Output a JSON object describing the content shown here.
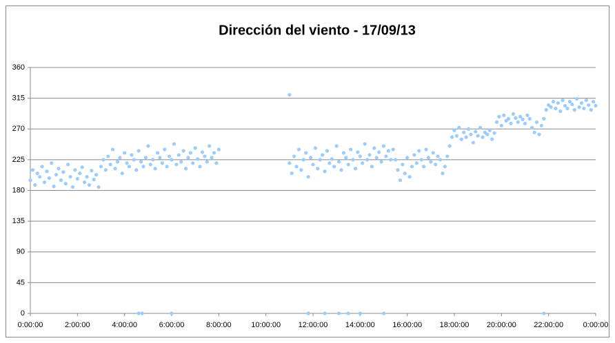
{
  "chart_data": {
    "type": "scatter",
    "title": "Dirección del viento - 17/09/13",
    "color": "#99ccff",
    "grid": true,
    "xlim": [
      0,
      24
    ],
    "xticks": [
      {
        "value": 0,
        "label": "0:00:00"
      },
      {
        "value": 2,
        "label": "2:00:00"
      },
      {
        "value": 4,
        "label": "4:00:00"
      },
      {
        "value": 6,
        "label": "6:00:00"
      },
      {
        "value": 8,
        "label": "8:00:00"
      },
      {
        "value": 10,
        "label": "10:00:00"
      },
      {
        "value": 12,
        "label": "12:00:00"
      },
      {
        "value": 14,
        "label": "14:00:00"
      },
      {
        "value": 16,
        "label": "16:00:00"
      },
      {
        "value": 18,
        "label": "18:00:00"
      },
      {
        "value": 20,
        "label": "20:00:00"
      },
      {
        "value": 22,
        "label": "22:00:00"
      },
      {
        "value": 24,
        "label": "0:00:00"
      }
    ],
    "ylim": [
      0,
      360
    ],
    "yticks": [
      0,
      45,
      90,
      135,
      180,
      225,
      270,
      315,
      360
    ],
    "x": [
      0,
      0.1,
      0.2,
      0.3,
      0.4,
      0.5,
      0.6,
      0.7,
      0.8,
      0.9,
      1,
      1.1,
      1.2,
      1.3,
      1.4,
      1.5,
      1.6,
      1.7,
      1.8,
      1.9,
      2,
      2.1,
      2.2,
      2.3,
      2.4,
      2.5,
      2.6,
      2.7,
      2.8,
      2.9,
      3,
      3.1,
      3.2,
      3.3,
      3.4,
      3.5,
      3.6,
      3.7,
      3.8,
      3.9,
      4,
      4.1,
      4.2,
      4.3,
      4.4,
      4.5,
      4.6,
      4.7,
      4.8,
      4.9,
      5,
      5.1,
      5.2,
      5.3,
      5.4,
      5.5,
      5.6,
      5.7,
      5.8,
      5.9,
      6,
      6.1,
      6.2,
      6.3,
      6.4,
      6.5,
      6.6,
      6.7,
      6.8,
      6.9,
      7,
      7.1,
      7.2,
      7.3,
      7.4,
      7.5,
      7.6,
      7.7,
      7.8,
      7.9,
      8,
      11,
      11.1,
      11.2,
      11.3,
      11.4,
      11.5,
      11.6,
      11.7,
      11.8,
      11.9,
      12,
      12.1,
      12.2,
      12.3,
      12.4,
      12.5,
      12.6,
      12.7,
      12.8,
      12.9,
      13,
      13.1,
      13.2,
      13.3,
      13.4,
      13.5,
      13.6,
      13.7,
      13.8,
      13.9,
      14,
      14.1,
      14.2,
      14.3,
      14.4,
      14.5,
      14.6,
      14.7,
      14.8,
      14.9,
      15,
      15.1,
      15.2,
      15.3,
      15.4,
      15.5,
      15.6,
      15.7,
      15.8,
      15.9,
      16,
      16.1,
      16.2,
      16.3,
      16.4,
      16.5,
      16.6,
      16.7,
      16.8,
      16.9,
      17,
      17.1,
      17.2,
      17.3,
      17.4,
      17.5,
      17.6,
      17.7,
      17.8,
      17.9,
      18,
      18.1,
      18.2,
      18.3,
      18.4,
      18.5,
      18.6,
      18.7,
      18.8,
      18.9,
      19,
      19.1,
      19.2,
      19.3,
      19.4,
      19.5,
      19.6,
      19.7,
      19.8,
      19.9,
      20,
      20.1,
      20.2,
      20.3,
      20.4,
      20.5,
      20.6,
      20.7,
      20.8,
      20.9,
      21,
      21.1,
      21.2,
      21.3,
      21.4,
      21.5,
      21.6,
      21.7,
      21.8,
      21.9,
      22,
      22.1,
      22.2,
      22.3,
      22.4,
      22.5,
      22.6,
      22.7,
      22.8,
      22.9,
      23,
      23.1,
      23.2,
      23.3,
      23.4,
      23.5,
      23.6,
      23.7,
      23.8,
      23.9,
      24,
      4.6,
      4.75,
      6,
      11,
      11.8,
      12.5,
      13.1,
      13.5,
      14,
      15,
      21.8
    ],
    "values": [
      195,
      210,
      188,
      205,
      200,
      215,
      192,
      208,
      198,
      220,
      186,
      203,
      212,
      195,
      207,
      190,
      218,
      200,
      185,
      210,
      197,
      205,
      214,
      192,
      200,
      188,
      209,
      196,
      203,
      185,
      215,
      225,
      210,
      230,
      218,
      240,
      212,
      222,
      228,
      205,
      235,
      220,
      215,
      232,
      225,
      210,
      238,
      222,
      215,
      228,
      245,
      218,
      225,
      212,
      235,
      228,
      220,
      240,
      215,
      230,
      225,
      248,
      218,
      232,
      222,
      238,
      212,
      228,
      235,
      220,
      242,
      226,
      215,
      236,
      230,
      222,
      245,
      228,
      235,
      220,
      240,
      220,
      205,
      230,
      215,
      240,
      210,
      225,
      235,
      200,
      228,
      218,
      242,
      212,
      225,
      232,
      208,
      238,
      220,
      226,
      215,
      245,
      222,
      210,
      235,
      228,
      218,
      240,
      225,
      212,
      236,
      230,
      220,
      248,
      225,
      232,
      215,
      242,
      228,
      236,
      222,
      245,
      230,
      238,
      225,
      240,
      225,
      210,
      195,
      218,
      205,
      228,
      200,
      215,
      232,
      220,
      238,
      225,
      215,
      240,
      228,
      222,
      235,
      218,
      230,
      225,
      205,
      215,
      230,
      245,
      258,
      268,
      260,
      272,
      255,
      265,
      258,
      270,
      262,
      250,
      266,
      260,
      272,
      258,
      265,
      262,
      268,
      255,
      264,
      280,
      288,
      275,
      290,
      282,
      285,
      278,
      292,
      286,
      280,
      288,
      284,
      278,
      290,
      285,
      272,
      265,
      280,
      262,
      275,
      285,
      298,
      305,
      302,
      310,
      300,
      308,
      296,
      312,
      304,
      300,
      310,
      306,
      298,
      314,
      302,
      308,
      300,
      312,
      305,
      298,
      310,
      304,
      0,
      0,
      0,
      320,
      0,
      0,
      0,
      0,
      0,
      0,
      0
    ]
  }
}
